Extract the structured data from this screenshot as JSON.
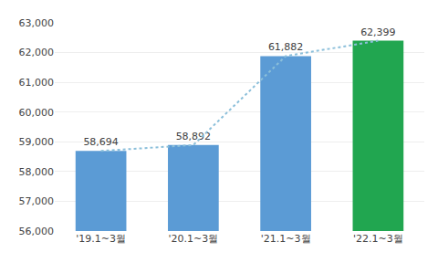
{
  "chart_data": {
    "type": "bar",
    "categories": [
      "'19.1~3월",
      "'20.1~3월",
      "'21.1~3월",
      "'22.1~3월"
    ],
    "series": [
      {
        "type": "bar",
        "colors": [
          "#5B9BD5",
          "#5B9BD5",
          "#5B9BD5",
          "#21A650"
        ],
        "values": [
          58694,
          58892,
          61882,
          62399
        ],
        "value_labels": [
          "58,694",
          "58,892",
          "61,882",
          "62,399"
        ]
      },
      {
        "type": "line",
        "color": "#8BBFDA",
        "line_style": "dotted",
        "values": [
          58694,
          58892,
          61882,
          62399
        ]
      }
    ],
    "data_labels": true,
    "ylim": [
      56000,
      63000
    ],
    "yticks": [
      {
        "value": 56000,
        "label": "56,000"
      },
      {
        "value": 57000,
        "label": "57,000"
      },
      {
        "value": 58000,
        "label": "58,000"
      },
      {
        "value": 59000,
        "label": "59,000"
      },
      {
        "value": 60000,
        "label": "60,000"
      },
      {
        "value": 61000,
        "label": "61,000"
      },
      {
        "value": 62000,
        "label": "62,000"
      },
      {
        "value": 63000,
        "label": "63,000"
      }
    ],
    "grid": true
  }
}
